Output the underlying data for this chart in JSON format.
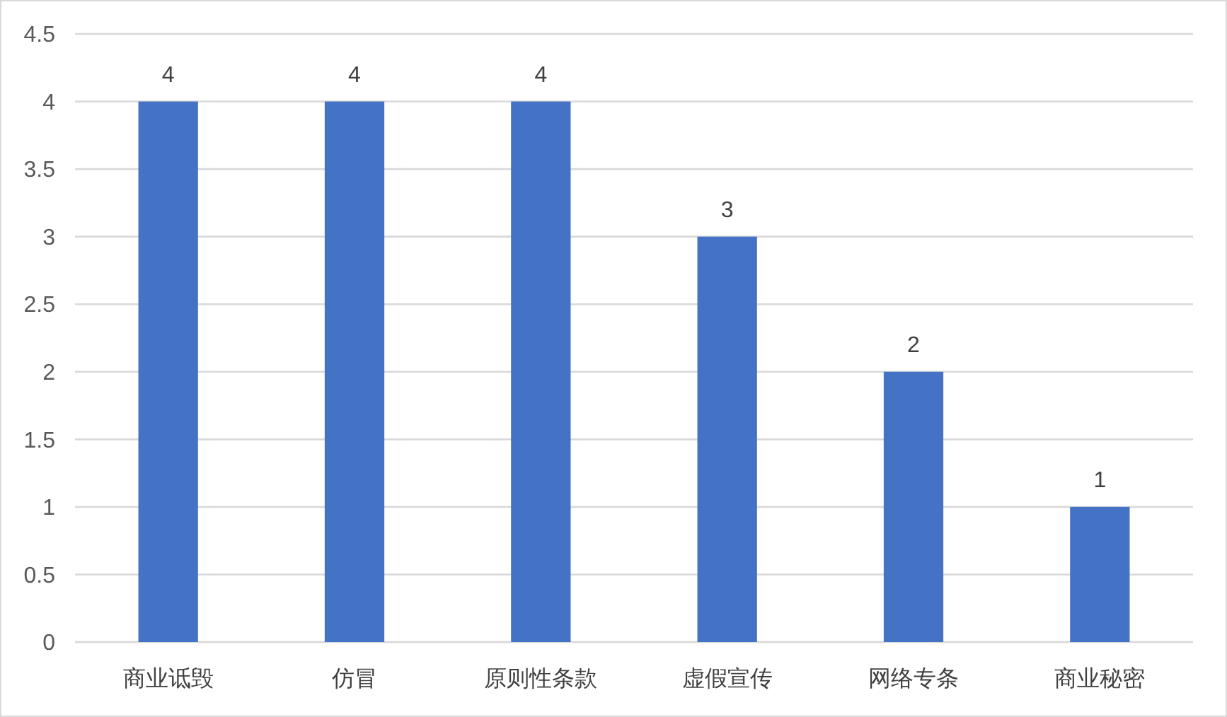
{
  "chart_data": {
    "type": "bar",
    "categories": [
      "商业诋毁",
      "仿冒",
      "原则性条款",
      "虚假宣传",
      "网络专条",
      "商业秘密"
    ],
    "values": [
      4,
      4,
      4,
      3,
      2,
      1
    ],
    "color": "#4472c4",
    "ylim": [
      0,
      4.5
    ],
    "yticks": [
      0,
      0.5,
      1,
      1.5,
      2,
      2.5,
      3,
      3.5,
      4,
      4.5
    ],
    "grid": "y",
    "data_labels": true
  }
}
